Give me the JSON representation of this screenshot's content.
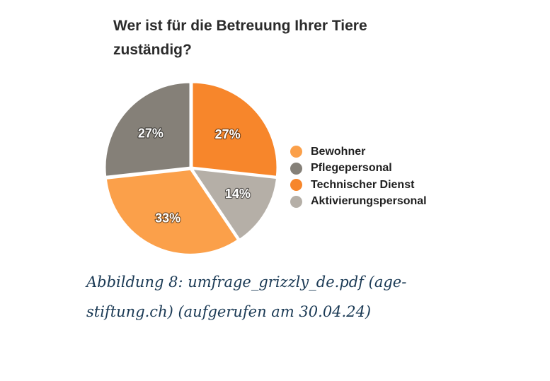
{
  "chart_data": {
    "type": "pie",
    "title": "Wer ist für die Betreuung Ihrer Tiere zuständig?",
    "categories": [
      "Technischer Dienst",
      "Aktivierungspersonal",
      "Bewohner",
      "Pflegepersonal"
    ],
    "values": [
      27,
      14,
      33,
      27
    ],
    "labels": [
      "27%",
      "14%",
      "33%",
      "27%"
    ],
    "colors": [
      "#f7862b",
      "#b5afa7",
      "#fba04a",
      "#858078"
    ],
    "legend": {
      "placement": "right",
      "items": [
        {
          "label": "Bewohner",
          "color": "#fba04a"
        },
        {
          "label": "Pflegepersonal",
          "color": "#858078"
        },
        {
          "label": "Technischer Dienst",
          "color": "#f7862b"
        },
        {
          "label": "Aktivierungspersonal",
          "color": "#b5afa7"
        }
      ]
    }
  },
  "caption": "Abbildung 8: umfrage_grizzly_de.pdf (age-stiftung.ch) (aufgerufen am 30.04.24)"
}
